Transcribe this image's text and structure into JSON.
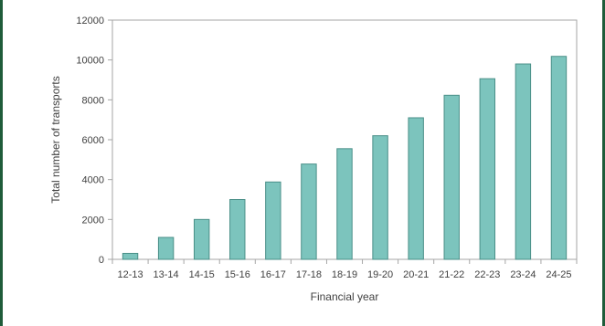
{
  "chart_data": {
    "type": "bar",
    "title": "",
    "xlabel": "Financial year",
    "ylabel": "Total number of transports",
    "categories": [
      "12-13",
      "13-14",
      "14-15",
      "15-16",
      "16-17",
      "17-18",
      "18-19",
      "19-20",
      "20-21",
      "21-22",
      "22-23",
      "23-24",
      "24-25"
    ],
    "values": [
      300,
      1100,
      2000,
      3000,
      3880,
      4780,
      5550,
      6200,
      7100,
      8230,
      9060,
      9800,
      10180
    ],
    "ylim": [
      0,
      12000
    ],
    "yticks": [
      0,
      2000,
      4000,
      6000,
      8000,
      10000,
      12000
    ],
    "grid": false,
    "legend": "none",
    "colors": {
      "bar_fill": "#7cc4bd",
      "bar_stroke": "#4a8f88",
      "axis": "#a6a6a6",
      "frame_border": "#1f5c3a"
    }
  }
}
